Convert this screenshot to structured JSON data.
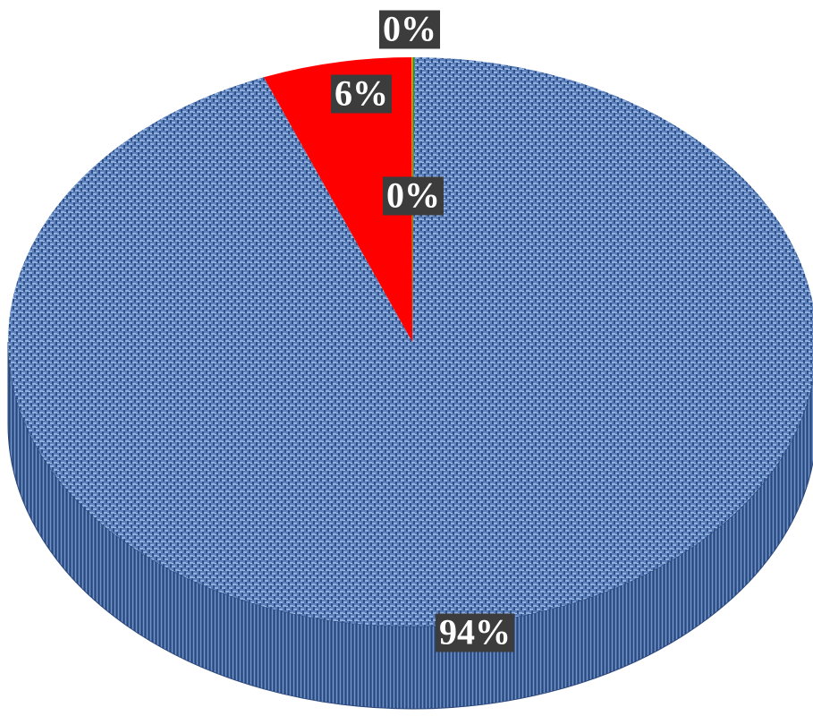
{
  "chart_data": {
    "type": "pie",
    "style": "3d",
    "slices": [
      {
        "value": 94,
        "label": "94%",
        "color": "#5b7fb8"
      },
      {
        "value": 6,
        "label": "6%",
        "color": "#ff0000"
      },
      {
        "value": 0,
        "label": "0%",
        "color": "#2e8b3e"
      },
      {
        "value": 0,
        "label": "0%",
        "color": "#ffc000"
      }
    ]
  }
}
